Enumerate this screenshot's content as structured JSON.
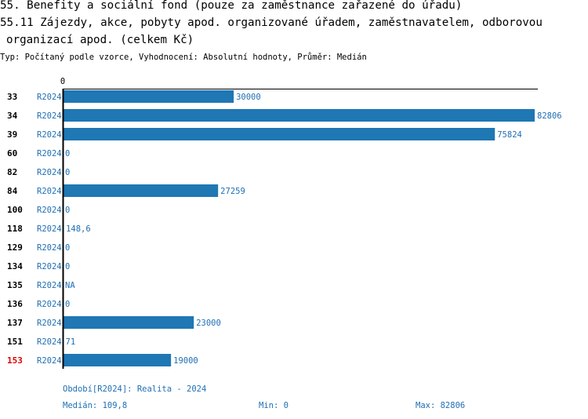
{
  "header": {
    "title_line1": "55. Benefity a sociální fond (pouze za zaměstnance zařazené do úřadu)",
    "title_line2": "55.11 Zájezdy, akce, pobyty apod. organizované úřadem, zaměstnavatelem, odborovou",
    "title_line3": "organizací apod. (celkem Kč)",
    "subtitle": "Typ: Počítaný podle vzorce, Vyhodnocení: Absolutní hodnoty, Průměr: Medián"
  },
  "chart_data": {
    "type": "bar",
    "orientation": "horizontal",
    "axis_tick_label": "0",
    "xlim": [
      0,
      82806
    ],
    "grid": false,
    "categories": [
      "33",
      "34",
      "39",
      "60",
      "82",
      "84",
      "100",
      "118",
      "129",
      "134",
      "135",
      "136",
      "137",
      "151",
      "153"
    ],
    "highlighted_category": "153",
    "series": [
      {
        "name": "R2024",
        "values": [
          30000,
          82806,
          75824,
          0,
          0,
          27259,
          0,
          148.6,
          0,
          0,
          null,
          0,
          23000,
          71,
          19000
        ],
        "value_labels": [
          "30000",
          "82806",
          "75824",
          "0",
          "0",
          "27259",
          "0",
          "148,6",
          "0",
          "0",
          "NA",
          "0",
          "23000",
          "71",
          "19000"
        ]
      }
    ],
    "colors": {
      "bar": "#1f77b4",
      "label": "#1f6fb4",
      "highlight": "#dd0000"
    }
  },
  "footer": {
    "period": "Období[R2024]: Realita - 2024",
    "median": "Medián: 109,8",
    "min": "Min: 0",
    "max": "Max: 82806"
  }
}
